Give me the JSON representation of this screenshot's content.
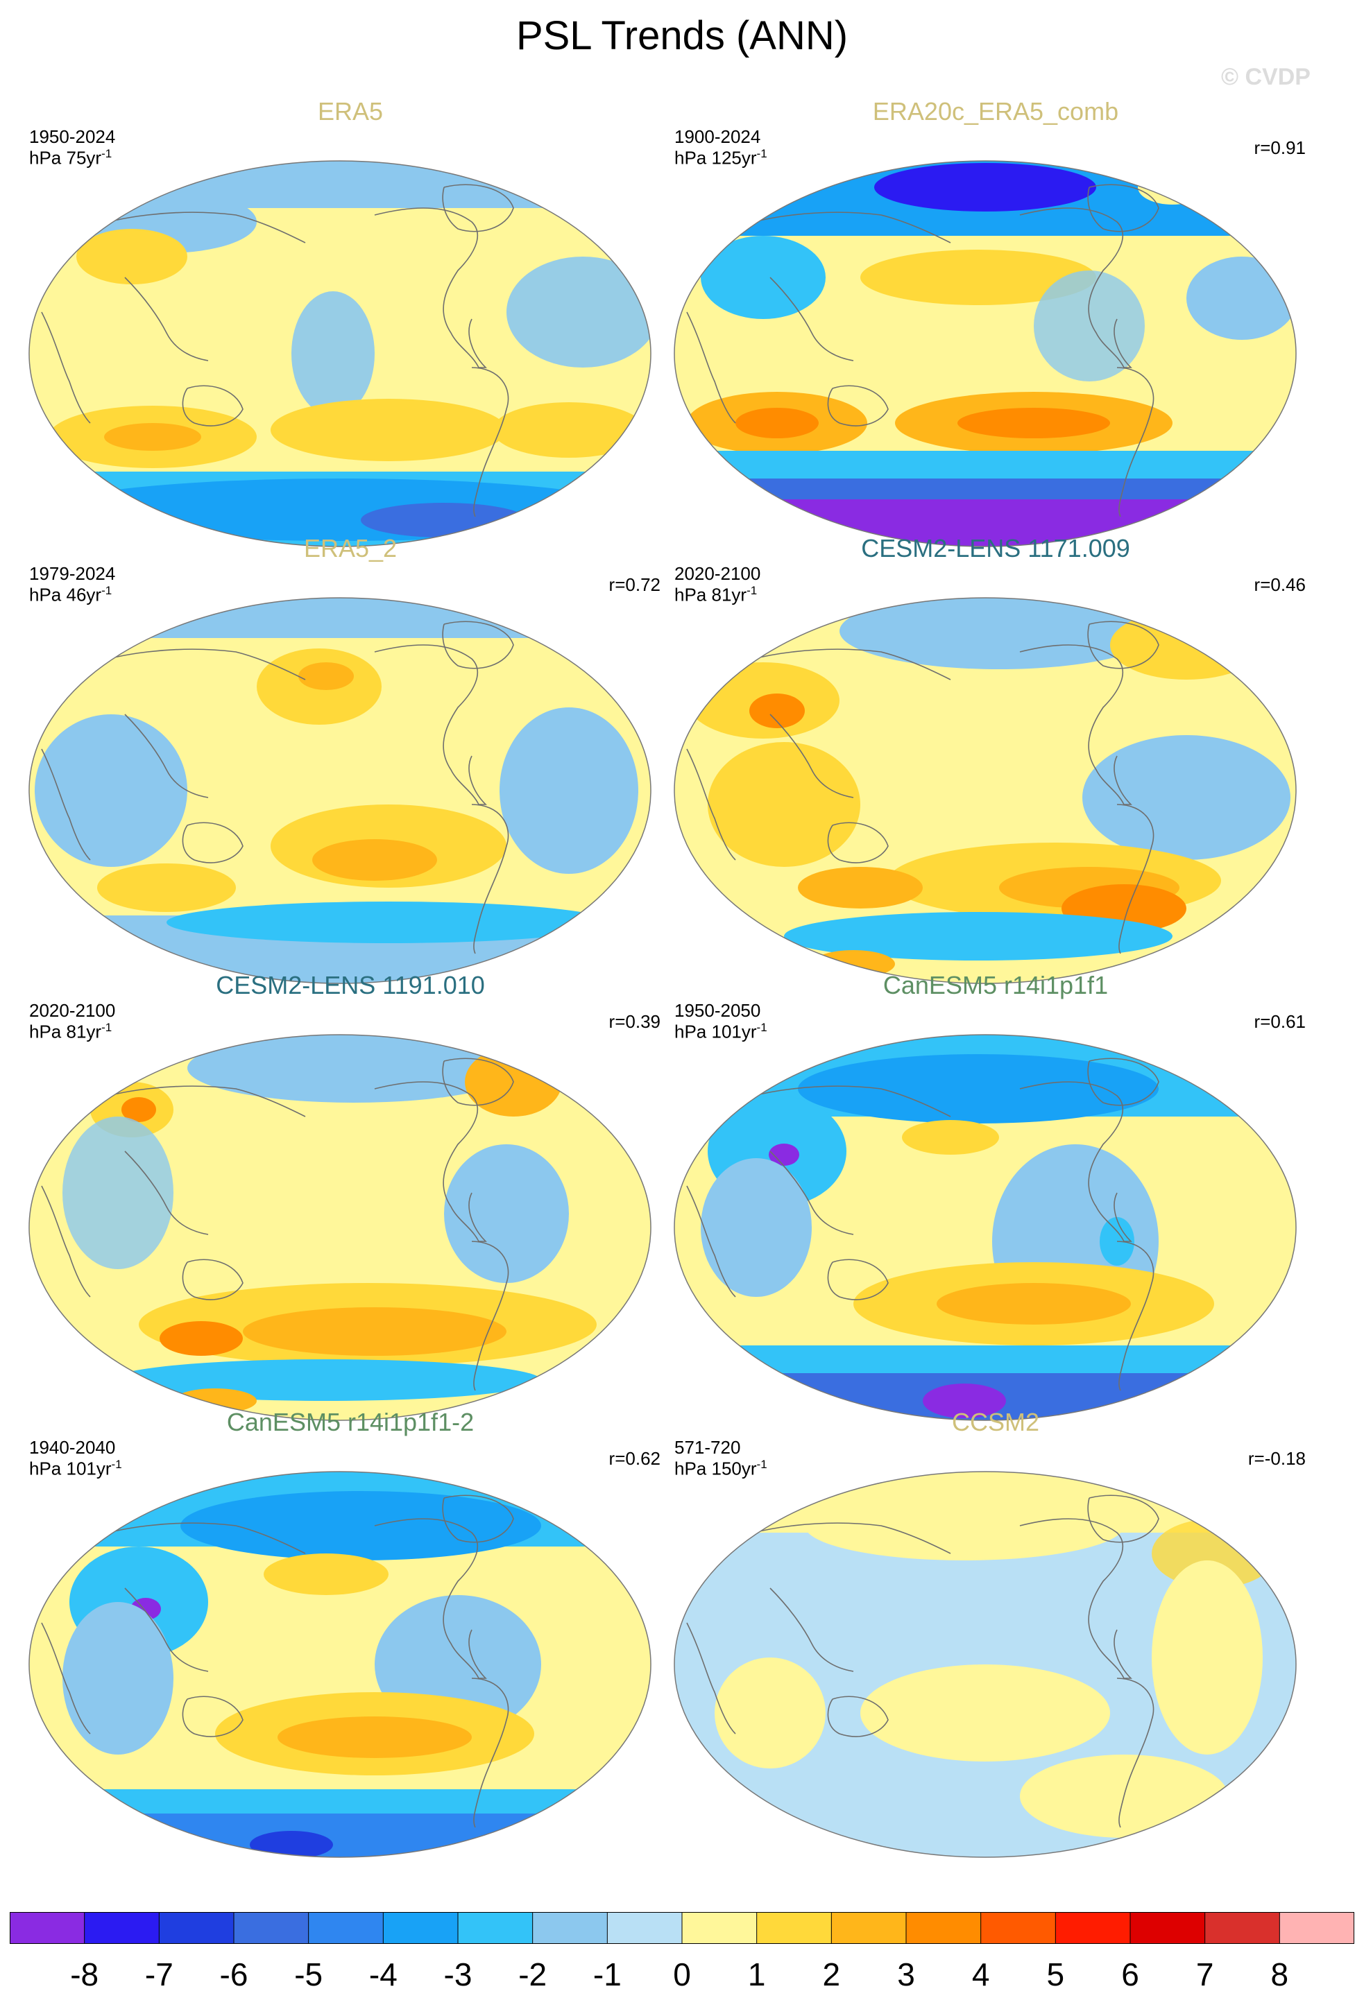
{
  "title": "PSL Trends (ANN)",
  "watermark": "© CVDP",
  "colors": {
    "title_tan": "#cfc07a",
    "title_teal": "#2a6f80",
    "title_green": "#5d8f63",
    "coast": "#6e6e6e",
    "outline": "#777777"
  },
  "panels": [
    {
      "title": "ERA5",
      "title_color": "tan",
      "period": "1950-2024",
      "units": "hPa 75yr",
      "unit_sup": "-1",
      "corr": ""
    },
    {
      "title": "ERA20c_ERA5_comb",
      "title_color": "tan",
      "period": "1900-2024",
      "units": "hPa 125yr",
      "unit_sup": "-1",
      "corr": "r=0.91"
    },
    {
      "title": "ERA5_2",
      "title_color": "tan",
      "period": "1979-2024",
      "units": "hPa 46yr",
      "unit_sup": "-1",
      "corr": "r=0.72"
    },
    {
      "title": "CESM2-LENS 1171.009",
      "title_color": "teal",
      "period": "2020-2100",
      "units": "hPa 81yr",
      "unit_sup": "-1",
      "corr": "r=0.46"
    },
    {
      "title": "CESM2-LENS 1191.010",
      "title_color": "teal",
      "period": "2020-2100",
      "units": "hPa 81yr",
      "unit_sup": "-1",
      "corr": "r=0.39"
    },
    {
      "title": "CanESM5 r14i1p1f1",
      "title_color": "green",
      "period": "1950-2050",
      "units": "hPa 101yr",
      "unit_sup": "-1",
      "corr": "r=0.61"
    },
    {
      "title": "CanESM5 r14i1p1f1-2",
      "title_color": "green",
      "period": "1940-2040",
      "units": "hPa 101yr",
      "unit_sup": "-1",
      "corr": "r=0.62"
    },
    {
      "title": "CCSM2",
      "title_color": "tan",
      "period": "571-720",
      "units": "hPa 150yr",
      "unit_sup": "-1",
      "corr": "r=-0.18"
    }
  ],
  "colorbar": {
    "labels": [
      "-8",
      "-7",
      "-6",
      "-5",
      "-4",
      "-3",
      "-2",
      "-1",
      "0",
      "1",
      "2",
      "3",
      "4",
      "5",
      "6",
      "7",
      "8"
    ],
    "colors": [
      "#8a2be2",
      "#2b1bf2",
      "#1f3ee0",
      "#3a6ee0",
      "#2f86f0",
      "#18a2f6",
      "#33c3f8",
      "#8cc8ee",
      "#b9e0f5",
      "#fff79a",
      "#ffd93a",
      "#ffb61a",
      "#ff8c00",
      "#ff5a00",
      "#ff1c00",
      "#dd0000",
      "#d9302c",
      "#ffb3b3"
    ]
  }
}
